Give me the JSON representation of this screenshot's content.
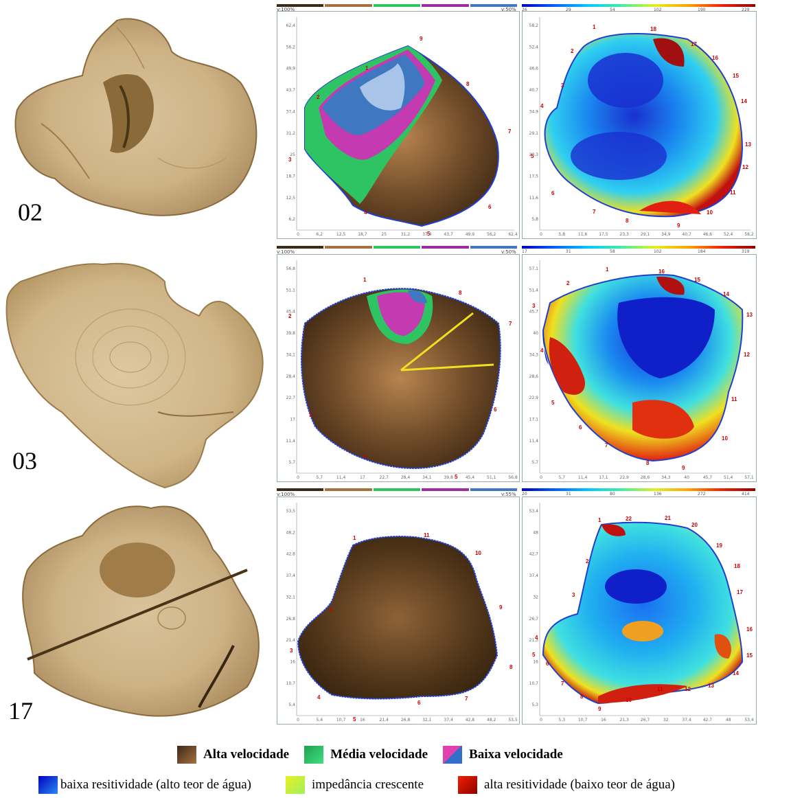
{
  "rows": [
    {
      "label": "02",
      "vel_pct": "v:50%",
      "scale_nums": [
        "26",
        "29",
        "54",
        "102",
        "190",
        "229"
      ],
      "vel_yticks": [
        "62,4",
        "56,2",
        "49,9",
        "43,7",
        "37,4",
        "31,2",
        "25",
        "18,7",
        "12,5",
        "6,2"
      ],
      "vel_xticks": [
        "0",
        "6,2",
        "12,5",
        "18,7",
        "25",
        "31,2",
        "37,4",
        "43,7",
        "49,9",
        "56,2",
        "62,4"
      ],
      "res_yticks": [
        "58,2",
        "52,4",
        "46,6",
        "40,7",
        "34,9",
        "29,1",
        "23,3",
        "17,5",
        "11,6",
        "5,8"
      ],
      "res_xticks": [
        "0",
        "5,8",
        "11,6",
        "17,5",
        "23,3",
        "29,1",
        "34,9",
        "40,7",
        "46,6",
        "52,4",
        "58,2"
      ],
      "vel_points": [
        "1",
        "2",
        "3",
        "4",
        "5",
        "6",
        "7",
        "8",
        "9"
      ],
      "res_points": [
        "1",
        "2",
        "3",
        "4",
        "5",
        "6",
        "7",
        "8",
        "9",
        "10",
        "11",
        "12",
        "13",
        "14",
        "15",
        "16",
        "17",
        "18"
      ]
    },
    {
      "label": "03",
      "vel_pct": "v:50%",
      "scale_nums": [
        "17",
        "31",
        "58",
        "102",
        "184",
        "319"
      ],
      "vel_yticks": [
        "56,8",
        "51,1",
        "45,4",
        "39,8",
        "34,1",
        "28,4",
        "22,7",
        "17",
        "11,4",
        "5,7"
      ],
      "vel_xticks": [
        "0",
        "5,7",
        "11,4",
        "17",
        "22,7",
        "28,4",
        "34,1",
        "39,8",
        "45,4",
        "51,1",
        "56,8"
      ],
      "res_yticks": [
        "57,1",
        "51,4",
        "45,7",
        "40",
        "34,3",
        "28,6",
        "22,9",
        "17,1",
        "11,4",
        "5,7"
      ],
      "res_xticks": [
        "0",
        "5,7",
        "11,4",
        "17,1",
        "22,9",
        "28,6",
        "34,3",
        "40",
        "45,7",
        "51,4",
        "57,1"
      ],
      "vel_points": [
        "1",
        "2",
        "3",
        "4",
        "5",
        "6",
        "7",
        "8"
      ],
      "res_points": [
        "1",
        "2",
        "3",
        "4",
        "5",
        "6",
        "7",
        "8",
        "9",
        "10",
        "11",
        "12",
        "13",
        "14",
        "15",
        "16"
      ]
    },
    {
      "label": "17",
      "vel_pct": "v:55%",
      "scale_nums": [
        "20",
        "31",
        "80",
        "136",
        "272",
        "414"
      ],
      "vel_yticks": [
        "53,5",
        "48,2",
        "42,8",
        "37,4",
        "32,1",
        "26,8",
        "21,4",
        "16",
        "10,7",
        "5,4"
      ],
      "vel_xticks": [
        "0",
        "5,4",
        "10,7",
        "16",
        "21,4",
        "26,8",
        "32,1",
        "37,4",
        "42,8",
        "48,2",
        "53,5"
      ],
      "res_yticks": [
        "53,4",
        "48",
        "42,7",
        "37,4",
        "32",
        "26,7",
        "21,3",
        "16",
        "10,7",
        "5,3"
      ],
      "res_xticks": [
        "0",
        "5,3",
        "10,7",
        "16",
        "21,3",
        "26,7",
        "32",
        "37,4",
        "42,7",
        "48",
        "53,4"
      ],
      "vel_points": [
        "1",
        "2",
        "3",
        "4",
        "5",
        "6",
        "7",
        "8",
        "9",
        "10",
        "11"
      ],
      "res_points": [
        "1",
        "2",
        "3",
        "4",
        "5",
        "6",
        "7",
        "8",
        "9",
        "10",
        "11",
        "12",
        "13",
        "14",
        "15",
        "16",
        "17",
        "18",
        "19",
        "20",
        "21",
        "22"
      ]
    }
  ],
  "vmax": "v:100%",
  "legend": {
    "alta": "Alta velocidade",
    "media": "Média velocidade",
    "baixa": "Baixa velocidade",
    "res_low": "baixa resitividade (alto teor de água)",
    "imp": "impedância crescente",
    "res_high": "alta resitividade (baixo teor de água)"
  },
  "colors": {
    "alta": "#6b4a2a",
    "media": "#2ecc71",
    "baixa": "#d63fb0",
    "baixa2": "#2e6fc9",
    "res_low": "#1030d0",
    "imp": "#e8f020",
    "res_high": "#b01010"
  }
}
